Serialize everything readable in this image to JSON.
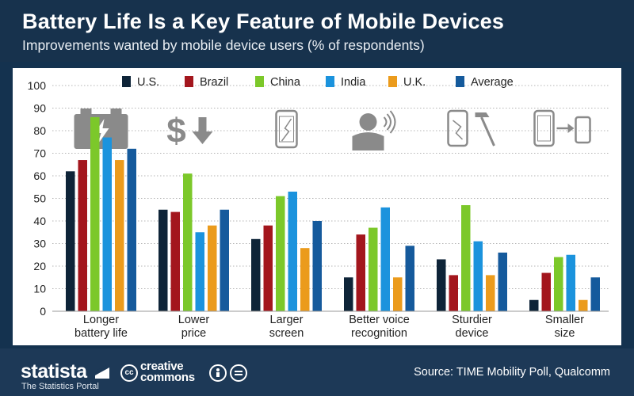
{
  "header": {
    "title": "Battery Life Is a Key Feature of Mobile Devices",
    "subtitle": "Improvements wanted by mobile device users (% of respondents)"
  },
  "footer": {
    "brand": "statista",
    "tagline": "The Statistics Portal",
    "cc_line1": "creative",
    "cc_line2": "commons",
    "cc_symbol": "cc",
    "source": "Source: TIME Mobility Poll, Qualcomm"
  },
  "colors": {
    "U.S.": "#0e2438",
    "Brazil": "#a3161d",
    "China": "#7cc82a",
    "India": "#1b93dd",
    "U.K.": "#eb9b1c",
    "Average": "#155a9c",
    "icon": "#8a8a8a"
  },
  "icons": [
    "battery-icon",
    "price-down-icon",
    "cracked-phone-icon",
    "voice-person-icon",
    "phone-hammer-icon",
    "phone-shrink-icon"
  ],
  "chart_data": {
    "type": "bar",
    "categories": [
      "Longer\nbattery life",
      "Lower\nprice",
      "Larger\nscreen",
      "Better voice\nrecognition",
      "Sturdier\ndevice",
      "Smaller\nsize"
    ],
    "series": [
      {
        "name": "U.S.",
        "values": [
          62,
          45,
          32,
          15,
          23,
          5
        ]
      },
      {
        "name": "Brazil",
        "values": [
          67,
          44,
          38,
          34,
          16,
          17
        ]
      },
      {
        "name": "China",
        "values": [
          86,
          61,
          51,
          37,
          47,
          24
        ]
      },
      {
        "name": "India",
        "values": [
          77,
          35,
          53,
          46,
          31,
          25
        ]
      },
      {
        "name": "U.K.",
        "values": [
          67,
          38,
          28,
          15,
          16,
          5
        ]
      },
      {
        "name": "Average",
        "values": [
          72,
          45,
          40,
          29,
          26,
          15
        ]
      }
    ],
    "ylim": [
      0,
      100
    ],
    "yticks": [
      0,
      10,
      20,
      30,
      40,
      50,
      60,
      70,
      80,
      90,
      100
    ],
    "grid": true,
    "legend": "top"
  }
}
